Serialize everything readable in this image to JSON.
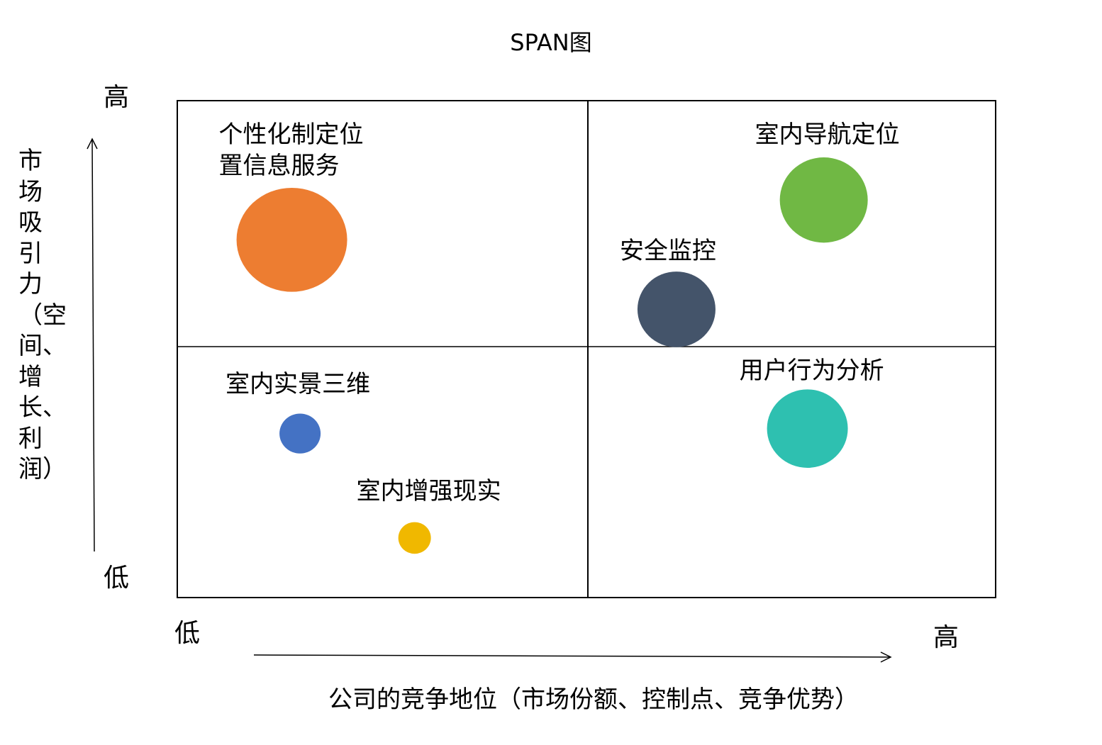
{
  "chart_data": {
    "type": "scatter",
    "title": "SPAN图",
    "xlabel": "公司的竞争地位（市场份额、控制点、竞争优势）",
    "ylabel": "市场吸引力（空间、增长、利润）",
    "x_ticks": [
      "低",
      "高"
    ],
    "y_ticks": [
      "低",
      "高"
    ],
    "xlim": [
      0,
      100
    ],
    "ylim": [
      0,
      100
    ],
    "grid": "2x2 quadrants",
    "points": [
      {
        "label": "个性化制定位\n置信息服务",
        "x": 14,
        "y": 72,
        "size": 78,
        "color": "#ED7D31"
      },
      {
        "label": "室内导航定位",
        "x": 79,
        "y": 80,
        "size": 62,
        "color": "#70B844"
      },
      {
        "label": "安全监控",
        "x": 61,
        "y": 58,
        "size": 55,
        "color": "#44546A"
      },
      {
        "label": "用户行为分析",
        "x": 77,
        "y": 34,
        "size": 57,
        "color": "#2EC0B0"
      },
      {
        "label": "室内实景三维",
        "x": 15,
        "y": 33,
        "size": 29,
        "color": "#4472C4"
      },
      {
        "label": "室内增强现实",
        "x": 29,
        "y": 12,
        "size": 23,
        "color": "#F0B800"
      }
    ]
  }
}
